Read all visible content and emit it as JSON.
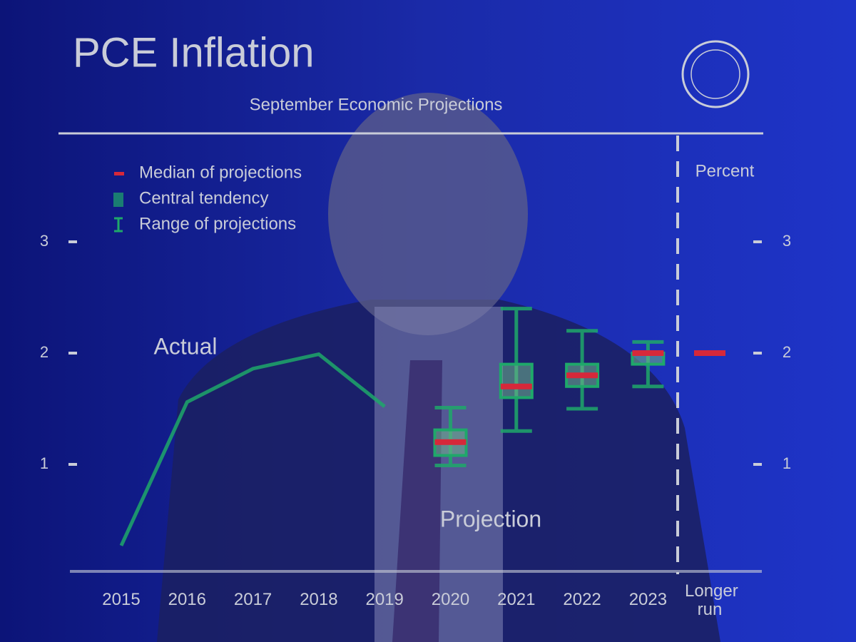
{
  "chart_data": {
    "type": "box",
    "title": "PCE Inflation",
    "subtitle": "September Economic Projections",
    "y_axis_label": "Percent",
    "annotations": [
      "Actual",
      "Projection"
    ],
    "categories": [
      "2015",
      "2016",
      "2017",
      "2018",
      "2019",
      "2020",
      "2021",
      "2022",
      "2023",
      "Longer run"
    ],
    "ylim": [
      0,
      4
    ],
    "yticks": [
      1,
      2,
      3
    ],
    "actual": {
      "name": "Actual",
      "color": "#1fa86a",
      "values": [
        0.27,
        1.56,
        1.86,
        1.99,
        1.52,
        null,
        null,
        null,
        null,
        null
      ]
    },
    "median": {
      "name": "Median of projections",
      "color": "#d6283a",
      "values": [
        null,
        null,
        null,
        null,
        null,
        1.2,
        1.7,
        1.8,
        2.0,
        2.0
      ]
    },
    "central_tendency": {
      "name": "Central tendency",
      "color": "#1fa86a",
      "low": [
        null,
        null,
        null,
        null,
        null,
        1.08,
        1.6,
        1.7,
        1.9,
        null
      ],
      "high": [
        null,
        null,
        null,
        null,
        null,
        1.31,
        1.9,
        1.9,
        2.0,
        null
      ]
    },
    "range": {
      "name": "Range of projections",
      "color": "#1fa86a",
      "low": [
        null,
        null,
        null,
        null,
        null,
        0.99,
        1.3,
        1.5,
        1.7,
        null
      ],
      "high": [
        null,
        null,
        null,
        null,
        null,
        1.51,
        2.4,
        2.2,
        2.1,
        null
      ]
    }
  }
}
